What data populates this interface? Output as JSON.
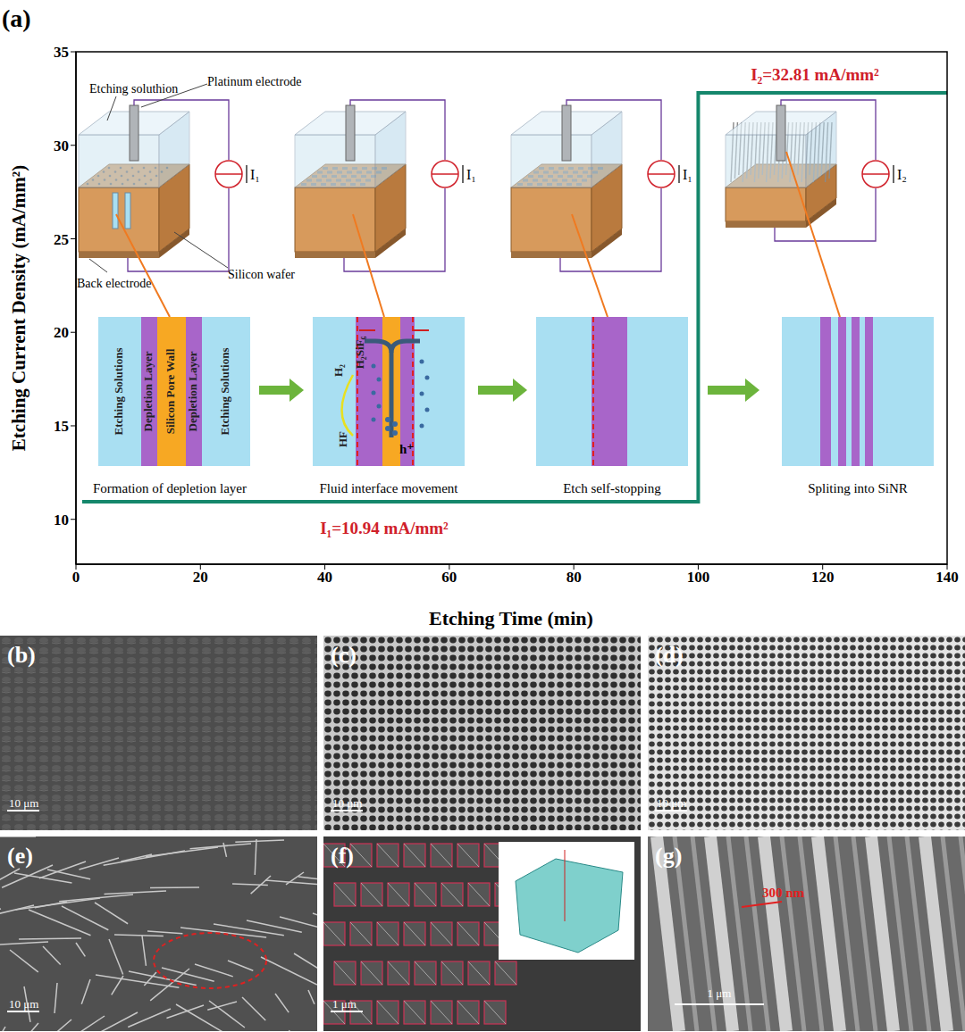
{
  "panel_label": "(a)",
  "chart_data": {
    "type": "line",
    "x_label": "Etching Time (min)",
    "y_label": "Etching Current Density (mA/mm²)",
    "xlim": [
      0,
      140
    ],
    "xticks": [
      0,
      20,
      40,
      60,
      80,
      100,
      120,
      140
    ],
    "ylim": [
      7.6,
      35
    ],
    "yticks": [
      10,
      15,
      20,
      25,
      30,
      35
    ],
    "x": [
      1,
      100,
      100,
      140
    ],
    "values": [
      10.94,
      10.94,
      32.81,
      32.81
    ],
    "color": "#15876c",
    "annotations": [
      "I₁=10.94 mA/mm²",
      "I₂=32.81 mA/mm²"
    ]
  },
  "schematic": {
    "callouts": [
      "Etching soluthion",
      "Platinum electrode",
      "Back electrode",
      "Silicon wafer"
    ],
    "stages": [
      {
        "caption": "Formation of depletion layer",
        "current": "I₁",
        "layers": [
          "Etching Solutions",
          "Depletion Layer",
          "Silicon Pore Wall",
          "Depletion Layer",
          "Etching Solutions"
        ]
      },
      {
        "caption": "Fluid interface movement",
        "current": "I₁",
        "species": [
          "H₂",
          "H₂SiF₆",
          "HF",
          "h⁺"
        ]
      },
      {
        "caption": "Etch self-stopping",
        "current": "I₁"
      },
      {
        "caption": "Spliting into SiNR",
        "current": "I₂"
      }
    ]
  },
  "sem_panels": [
    {
      "label": "(b)",
      "scale_bar": "10 μm"
    },
    {
      "label": "(c)",
      "scale_bar": "10 μm"
    },
    {
      "label": "(d)",
      "scale_bar": "10 μm"
    },
    {
      "label": "(e)",
      "scale_bar": "10 μm"
    },
    {
      "label": "(f)",
      "scale_bar": "1 μm"
    },
    {
      "label": "(g)",
      "scale_bar": "1 μm",
      "annotation": "300 nm"
    }
  ]
}
